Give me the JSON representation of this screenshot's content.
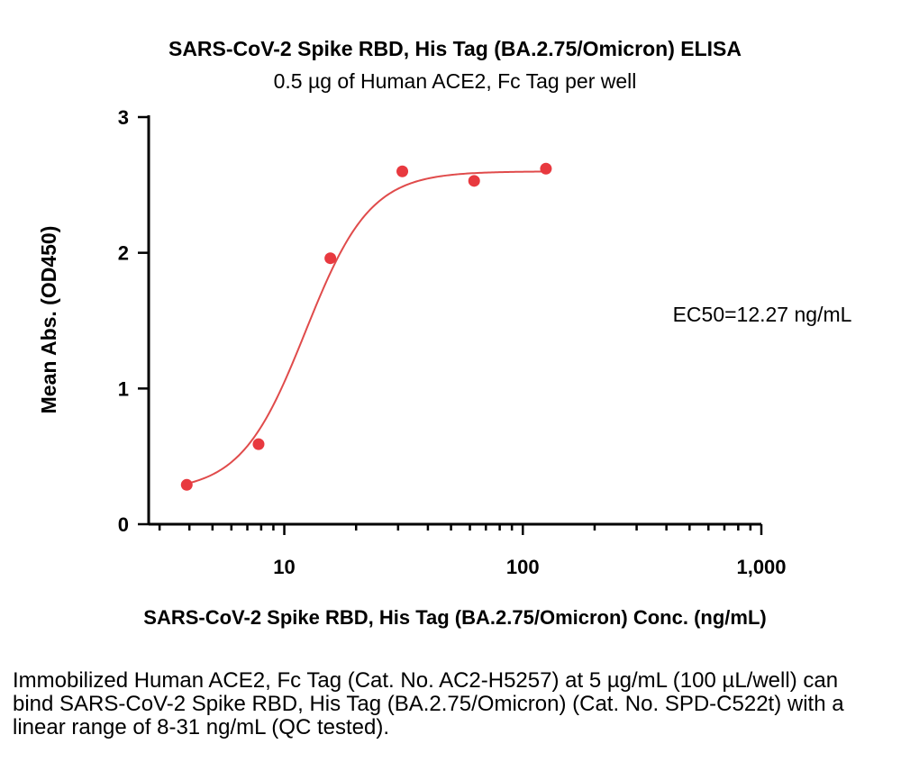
{
  "chart_data": {
    "type": "scatter",
    "title": "SARS-CoV-2 Spike RBD, His Tag (BA.2.75/Omicron) ELISA",
    "subtitle": "0.5 µg of Human ACE2, Fc Tag per well",
    "xlabel": "SARS-CoV-2 Spike RBD, His Tag (BA.2.75/Omicron) Conc. (ng/mL)",
    "ylabel": "Mean Abs. (OD450)",
    "x_scale": "log",
    "xlim": [
      2.7,
      1000
    ],
    "ylim": [
      0,
      3
    ],
    "x_ticks": [
      10,
      100,
      1000
    ],
    "x_tick_labels": [
      "10",
      "100",
      "1,000"
    ],
    "y_ticks": [
      0,
      1,
      2,
      3
    ],
    "y_tick_labels": [
      "0",
      "1",
      "2",
      "3"
    ],
    "annotation": "EC50=12.27 ng/mL",
    "marker_color": "#e8393f",
    "curve_color": "#e04b4b",
    "series": [
      {
        "x": [
          3.9,
          7.8,
          15.6,
          31.25,
          62.5,
          125
        ],
        "y": [
          0.29,
          0.59,
          1.96,
          2.6,
          2.53,
          2.62
        ]
      }
    ],
    "fit": {
      "model": "4PL",
      "bottom": 0.24,
      "top": 2.6,
      "ec50": 12.27,
      "hill": 3.2,
      "x_range": [
        3.9,
        125
      ]
    },
    "grid": false
  },
  "caption": "Immobilized Human ACE2, Fc Tag (Cat. No. AC2-H5257) at 5 µg/mL (100 µL/well) can bind SARS-CoV-2 Spike RBD, His Tag (BA.2.75/Omicron) (Cat. No. SPD-C522t) with a linear range of 8-31 ng/mL (QC tested)."
}
